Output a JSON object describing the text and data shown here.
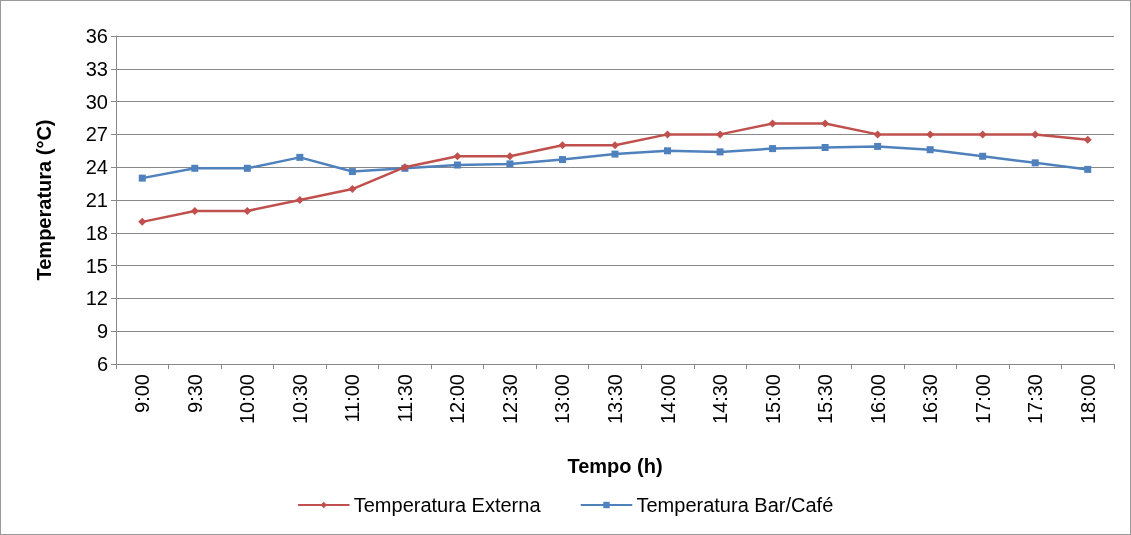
{
  "chart_data": {
    "type": "line",
    "xlabel": "Tempo (h)",
    "ylabel": "Temperatura (°C)",
    "categories": [
      "9:00",
      "9:30",
      "10:00",
      "10:30",
      "11:00",
      "11:30",
      "12:00",
      "12:30",
      "13:00",
      "13:30",
      "14:00",
      "14:30",
      "15:00",
      "15:30",
      "16:00",
      "16:30",
      "17:00",
      "17:30",
      "18:00"
    ],
    "series": [
      {
        "name": "Temperatura Externa",
        "color": "#c0504d",
        "marker": "diamond",
        "values": [
          19,
          20,
          20,
          21,
          22,
          24,
          25,
          25,
          26,
          26,
          27,
          27,
          28,
          28,
          27,
          27,
          27,
          27,
          26.5
        ]
      },
      {
        "name": "Temperatura Bar/Café",
        "color": "#4f81bd",
        "marker": "square",
        "values": [
          23,
          23.9,
          23.9,
          24.9,
          23.6,
          23.9,
          24.2,
          24.3,
          24.7,
          25.2,
          25.5,
          25.4,
          25.7,
          25.8,
          25.9,
          25.6,
          25,
          24.4,
          23.8
        ]
      }
    ],
    "ylim": [
      6,
      36
    ],
    "yticks": [
      6,
      9,
      12,
      15,
      18,
      21,
      24,
      27,
      30,
      33,
      36
    ],
    "grid": "y",
    "legend": "bottom",
    "line_style": "solid"
  }
}
